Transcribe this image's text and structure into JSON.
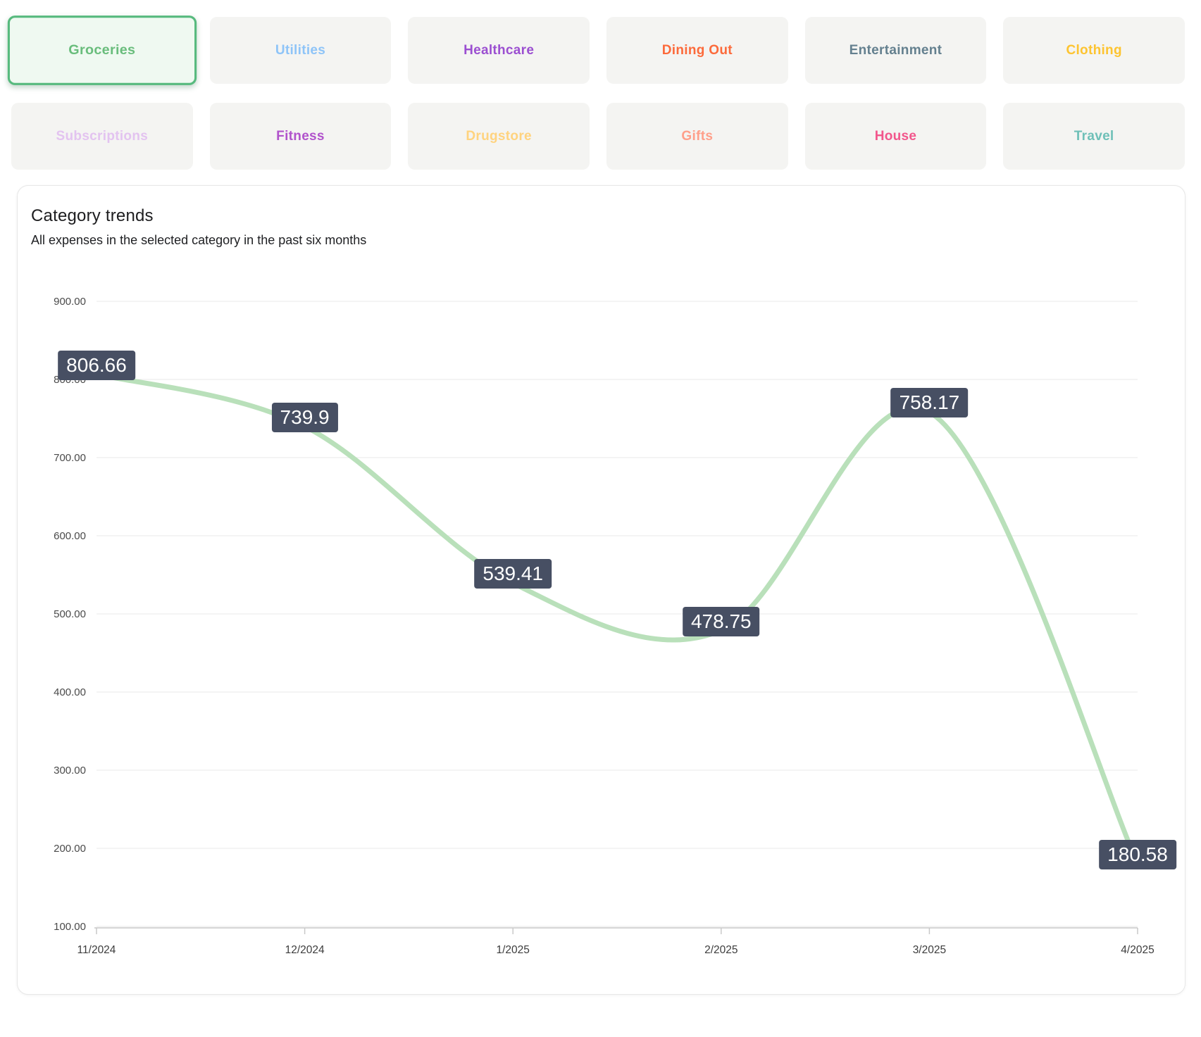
{
  "category_selector": {
    "items": [
      {
        "label": "Groceries",
        "color": "#69bd7c",
        "selected": true
      },
      {
        "label": "Utilities",
        "color": "#8ec4f8",
        "selected": false
      },
      {
        "label": "Healthcare",
        "color": "#9b4fd1",
        "selected": false
      },
      {
        "label": "Dining Out",
        "color": "#fc6a3b",
        "selected": false
      },
      {
        "label": "Entertainment",
        "color": "#64808f",
        "selected": false
      },
      {
        "label": "Clothing",
        "color": "#fdc431",
        "selected": false
      },
      {
        "label": "Subscriptions",
        "color": "#e3c3f0",
        "selected": false
      },
      {
        "label": "Fitness",
        "color": "#b153cc",
        "selected": false
      },
      {
        "label": "Drugstore",
        "color": "#ffd37f",
        "selected": false
      },
      {
        "label": "Gifts",
        "color": "#ff9f8a",
        "selected": false
      },
      {
        "label": "House",
        "color": "#f2568c",
        "selected": false
      },
      {
        "label": "Travel",
        "color": "#6fc0b8",
        "selected": false
      }
    ],
    "selected_style": {
      "border_color": "#57ba7e",
      "background": "#eff9f1"
    }
  },
  "trend_card": {
    "title": "Category trends",
    "subtitle": "All expenses in the selected category in the past six months"
  },
  "chart_data": {
    "type": "line",
    "title": "Category trends",
    "xlabel": "",
    "ylabel": "",
    "x": [
      "11/2024",
      "12/2024",
      "1/2025",
      "2/2025",
      "3/2025",
      "4/2025"
    ],
    "series": [
      {
        "name": "Groceries",
        "values": [
          806.66,
          739.9,
          539.41,
          478.75,
          758.17,
          180.58
        ]
      }
    ],
    "point_labels": [
      "806.66",
      "739.9",
      "539.41",
      "478.75",
      "758.17",
      "180.58"
    ],
    "ylim": [
      100,
      900
    ],
    "ytick_values": [
      900,
      800,
      700,
      600,
      500,
      400,
      300,
      200,
      100
    ],
    "ytick_labels": [
      "900.00",
      "800.00",
      "700.00",
      "600.00",
      "500.00",
      "400.00",
      "300.00",
      "200.00",
      "100.00"
    ],
    "grid": true,
    "legend_position": "none",
    "line_color": "#b9e0ba",
    "point_label_bg": "#474f63",
    "point_label_text_color": "#ffffff"
  }
}
